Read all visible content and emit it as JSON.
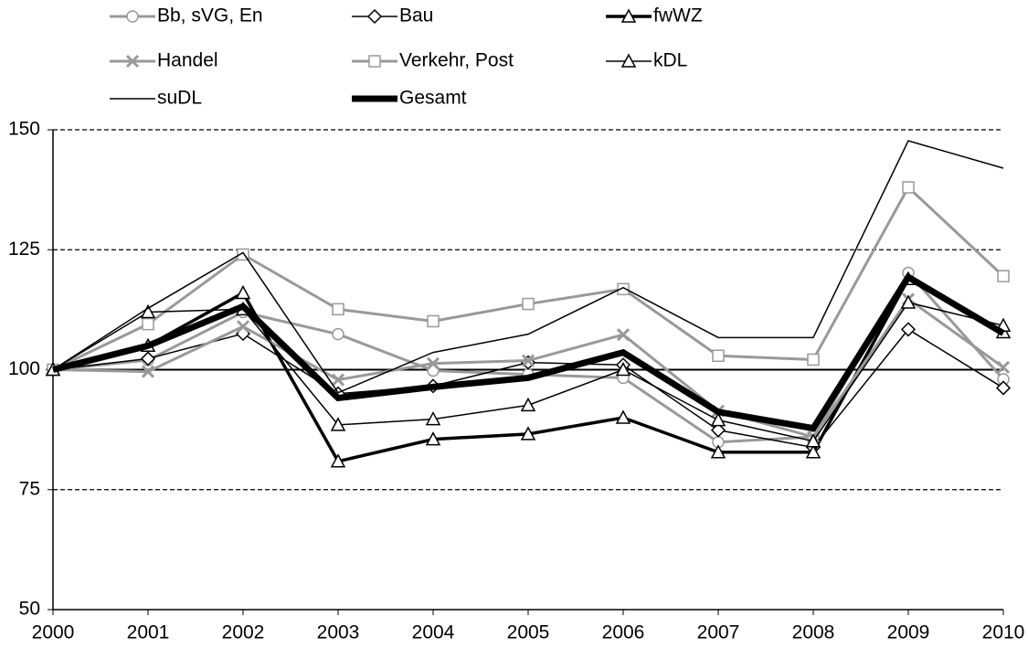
{
  "chart_data": {
    "type": "line",
    "x": [
      2000,
      2001,
      2002,
      2003,
      2004,
      2005,
      2006,
      2007,
      2008,
      2009,
      2010
    ],
    "xlim": [
      2000,
      2010
    ],
    "xticks": [
      2000,
      2001,
      2002,
      2003,
      2004,
      2005,
      2006,
      2007,
      2008,
      2009,
      2010
    ],
    "ylim": [
      50,
      150
    ],
    "yticks": [
      50,
      75,
      100,
      125,
      150
    ],
    "grid": "dashed",
    "reference_line": 100,
    "legend": "top",
    "series": [
      {
        "name": "Bb, sVG, En",
        "color": "#999999",
        "marker": "circle",
        "line_width": 3,
        "values": [
          100,
          102,
          112,
          107.4,
          99.8,
          99,
          98.3,
          84.9,
          86,
          120.2,
          98
        ]
      },
      {
        "name": "Bau",
        "color": "#000000",
        "marker": "diamond",
        "line_width": 1.5,
        "values": [
          100,
          102.3,
          107.5,
          95,
          96.6,
          101.5,
          101,
          87.4,
          83.8,
          108.4,
          96.2
        ]
      },
      {
        "name": "fwWZ",
        "color": "#000000",
        "marker": "triangle",
        "line_width": 3.5,
        "values": [
          100,
          105,
          116,
          80.9,
          85.5,
          86.6,
          90,
          82.8,
          82.8,
          118.9,
          107.8
        ]
      },
      {
        "name": "Handel",
        "color": "#999999",
        "marker": "x",
        "line_width": 3,
        "values": [
          100,
          99.6,
          109,
          97.9,
          101.3,
          101.9,
          107.3,
          91.4,
          86,
          114.7,
          100.5
        ]
      },
      {
        "name": "Verkehr, Post",
        "color": "#999999",
        "marker": "square",
        "line_width": 3,
        "values": [
          100,
          109.5,
          124,
          112.6,
          110.1,
          113.7,
          116.8,
          102.9,
          102.1,
          138,
          119.5
        ]
      },
      {
        "name": "kDL",
        "color": "#000000",
        "marker": "triangle",
        "line_width": 1.5,
        "values": [
          100,
          112,
          112.6,
          88.5,
          89.7,
          92.6,
          100,
          89.5,
          85.1,
          114,
          109.2
        ]
      },
      {
        "name": "suDL",
        "color": "#000000",
        "marker": "none",
        "line_width": 1.5,
        "values": [
          100,
          112.8,
          124.4,
          95.2,
          103.6,
          107.4,
          117.1,
          106.7,
          106.7,
          147.7,
          142
        ]
      },
      {
        "name": "Gesamt",
        "color": "#000000",
        "marker": "none",
        "line_width": 7,
        "values": [
          100,
          105,
          113.2,
          94.1,
          96.4,
          98.3,
          103.6,
          91.2,
          87.8,
          119.3,
          107.6
        ]
      }
    ]
  }
}
